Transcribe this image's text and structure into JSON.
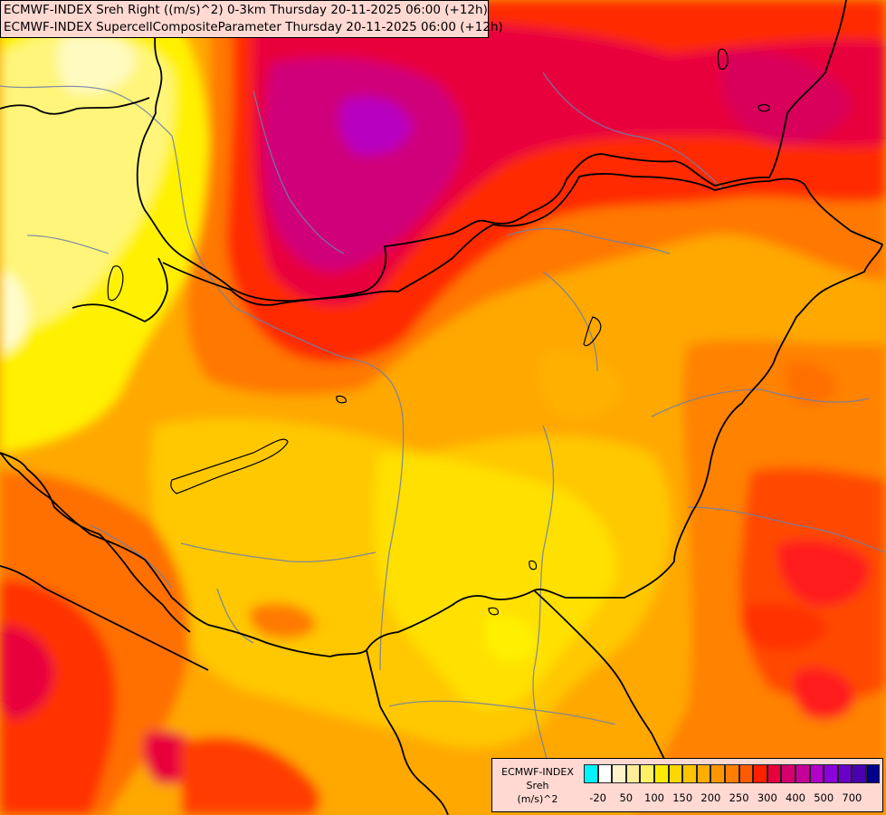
{
  "map": {
    "title_line_1": "ECMWF-INDEX Sreh Right ((m/s)^2) 0-3km Thursday 20-11-2025 06:00 (+12h)",
    "title_line_2": "ECMWF-INDEX SupercellCompositeParameter Thursday 20-11-2025 06:00 (+12h)"
  },
  "legend": {
    "title_line_1": "ECMWF-INDEX",
    "title_line_2": "Sreh",
    "unit": "(m/s)^2",
    "swatch_colors": [
      "#00f5ff",
      "#ffffff",
      "#fff3cc",
      "#ffec99",
      "#fff066",
      "#ffeb00",
      "#ffd700",
      "#ffc300",
      "#ffad00",
      "#ff9600",
      "#ff7e00",
      "#ff5a00",
      "#ff2000",
      "#e8003c",
      "#d4006e",
      "#c60099",
      "#b200c8",
      "#8a00d8",
      "#6a00c8",
      "#4a00b0",
      "#00008a"
    ],
    "tick_labels": [
      "-20",
      "50",
      "100",
      "150",
      "200",
      "250",
      "300",
      "400",
      "500",
      "700"
    ]
  },
  "palette": {
    "background": "#f5a400",
    "border_color": "#000000",
    "river_color": "#6e7fa8"
  }
}
